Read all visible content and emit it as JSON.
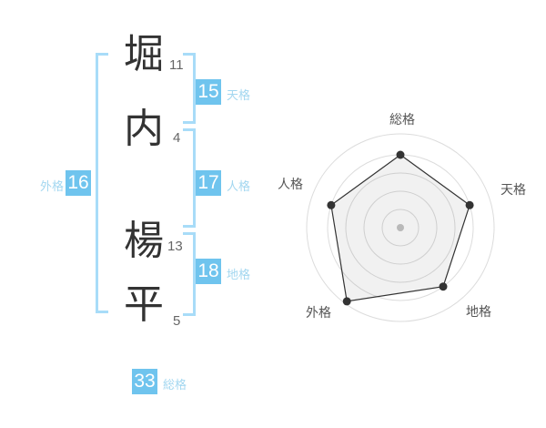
{
  "name": {
    "characters": [
      {
        "glyph": "堀",
        "strokes": "11"
      },
      {
        "glyph": "内",
        "strokes": "4"
      },
      {
        "glyph": "楊",
        "strokes": "13"
      },
      {
        "glyph": "平",
        "strokes": "5"
      }
    ]
  },
  "kaku": {
    "tenkaku": {
      "value": "15",
      "label": "天格"
    },
    "jinkaku": {
      "value": "17",
      "label": "人格"
    },
    "chikaku": {
      "value": "18",
      "label": "地格"
    },
    "gaikaku": {
      "value": "16",
      "label": "外格"
    },
    "soukaku": {
      "value": "33",
      "label": "総格"
    }
  },
  "chart_data": {
    "type": "radar",
    "axes": [
      "総格",
      "天格",
      "地格",
      "外格",
      "人格"
    ],
    "values": [
      4,
      4,
      4,
      5,
      4
    ],
    "max": 5,
    "rings": 5,
    "grid": "concentric-circles",
    "legend": false,
    "title": ""
  },
  "colors": {
    "accent_blue": "#6fc4ee",
    "bracket_blue": "#a8dcf8",
    "label_blue": "#a3d7f0",
    "kanji_dark": "#333333",
    "stroke_number_gray": "#666666",
    "chart_grid": "#dcdcdc",
    "chart_line": "#333333",
    "chart_fill": "rgba(0,0,0,0.055)",
    "chart_center_dot": "#c4c4c4",
    "chart_label_gray": "#555555",
    "background": "#ffffff"
  }
}
